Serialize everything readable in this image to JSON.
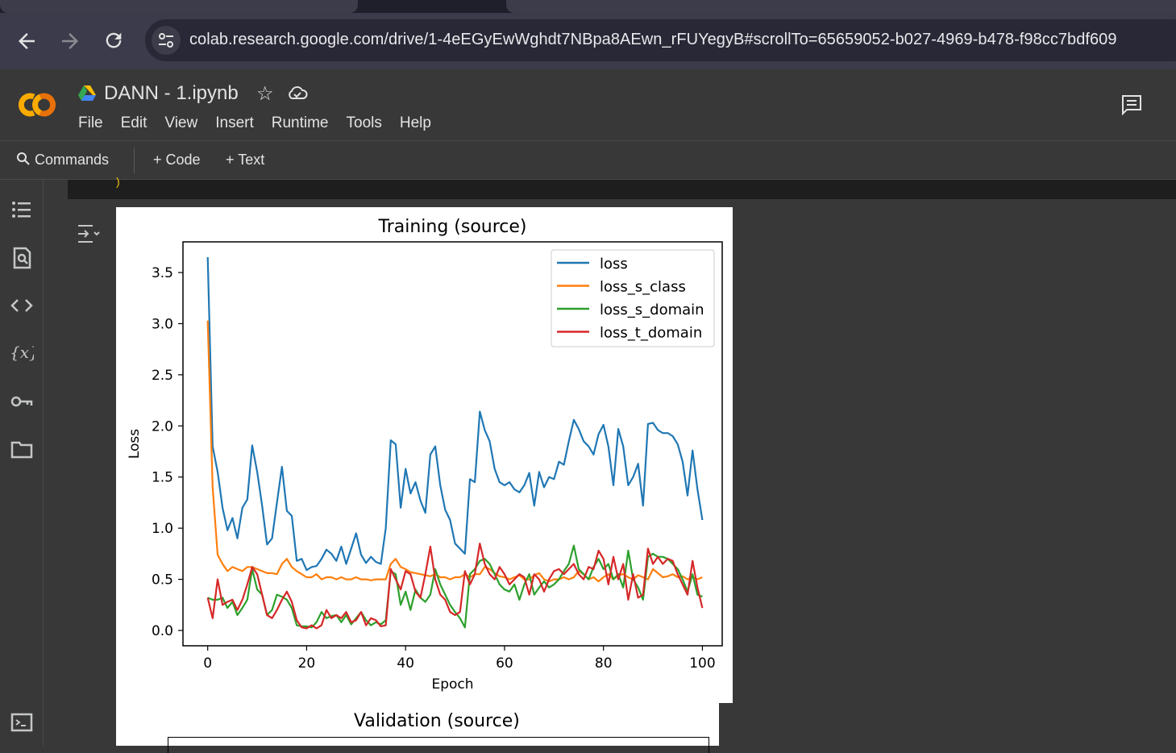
{
  "browser": {
    "url": "colab.research.google.com/drive/1-4eEGyEwWghdt7NBpa8AEwn_rFUYegyB#scrollTo=65659052-b027-4969-b478-f98cc7bdf609",
    "back_icon": "arrow-left-icon",
    "forward_icon": "arrow-right-icon",
    "reload_icon": "reload-icon"
  },
  "colab": {
    "logo_text": "CO",
    "notebook_title": "DANN - 1.ipynb",
    "menu": [
      "File",
      "Edit",
      "View",
      "Insert",
      "Runtime",
      "Tools",
      "Help"
    ],
    "commands_label": "Commands",
    "add_code_label": "+ Code",
    "add_text_label": "+ Text"
  },
  "figure2": {
    "title": "Validation (source)"
  },
  "chart_data": {
    "type": "line",
    "title": "Training (source)",
    "xlabel": "Epoch",
    "ylabel": "Loss",
    "xlim": [
      0,
      100
    ],
    "ylim": [
      -0.15,
      3.8
    ],
    "xticks": [
      0,
      20,
      40,
      60,
      80,
      100
    ],
    "yticks": [
      0.0,
      0.5,
      1.0,
      1.5,
      2.0,
      2.5,
      3.0,
      3.5
    ],
    "ytick_labels": [
      "0.0",
      "0.5",
      "1.0",
      "1.5",
      "2.0",
      "2.5",
      "3.0",
      "3.5"
    ],
    "xtick_labels": [
      "0",
      "20",
      "40",
      "60",
      "80",
      "100"
    ],
    "legend_position": "top-right",
    "grid": false,
    "series": [
      {
        "name": "loss",
        "color": "#1f77b4",
        "values": [
          3.65,
          1.8,
          1.55,
          1.2,
          0.98,
          1.1,
          0.9,
          1.2,
          1.28,
          1.81,
          1.55,
          1.22,
          0.84,
          0.9,
          1.25,
          1.6,
          1.17,
          1.12,
          0.68,
          0.7,
          0.59,
          0.62,
          0.63,
          0.7,
          0.79,
          0.75,
          0.68,
          0.82,
          0.65,
          0.8,
          0.95,
          0.74,
          0.66,
          0.72,
          0.67,
          0.65,
          1.0,
          1.86,
          1.82,
          1.2,
          1.58,
          1.34,
          1.45,
          1.27,
          1.15,
          1.72,
          1.8,
          1.42,
          1.18,
          1.08,
          0.85,
          0.8,
          0.75,
          1.48,
          1.45,
          2.14,
          1.96,
          1.85,
          1.58,
          1.45,
          1.42,
          1.45,
          1.38,
          1.35,
          1.42,
          1.54,
          1.22,
          1.55,
          1.4,
          1.5,
          1.48,
          1.65,
          1.62,
          1.85,
          2.06,
          1.97,
          1.85,
          1.8,
          1.72,
          1.92,
          2.01,
          1.8,
          1.42,
          1.97,
          1.8,
          1.42,
          1.5,
          1.63,
          1.22,
          2.02,
          2.03,
          1.96,
          1.93,
          1.93,
          1.9,
          1.82,
          1.65,
          1.32,
          1.76,
          1.38,
          1.08
        ]
      },
      {
        "name": "loss_s_class",
        "color": "#ff7f0e",
        "values": [
          3.03,
          1.4,
          0.74,
          0.65,
          0.58,
          0.62,
          0.6,
          0.58,
          0.62,
          0.62,
          0.6,
          0.58,
          0.56,
          0.56,
          0.55,
          0.65,
          0.7,
          0.62,
          0.58,
          0.55,
          0.52,
          0.52,
          0.55,
          0.5,
          0.52,
          0.52,
          0.5,
          0.52,
          0.5,
          0.5,
          0.52,
          0.5,
          0.5,
          0.49,
          0.5,
          0.5,
          0.5,
          0.65,
          0.7,
          0.62,
          0.6,
          0.57,
          0.56,
          0.55,
          0.54,
          0.53,
          0.55,
          0.52,
          0.52,
          0.5,
          0.52,
          0.52,
          0.55,
          0.52,
          0.55,
          0.55,
          0.62,
          0.6,
          0.56,
          0.53,
          0.52,
          0.5,
          0.52,
          0.54,
          0.5,
          0.5,
          0.54,
          0.56,
          0.5,
          0.48,
          0.5,
          0.5,
          0.52,
          0.5,
          0.52,
          0.58,
          0.55,
          0.5,
          0.52,
          0.48,
          0.52,
          0.55,
          0.5,
          0.54,
          0.55,
          0.52,
          0.5,
          0.54,
          0.52,
          0.5,
          0.6,
          0.56,
          0.52,
          0.53,
          0.55,
          0.52,
          0.53,
          0.5,
          0.52,
          0.5,
          0.52
        ]
      },
      {
        "name": "loss_s_domain",
        "color": "#2ca02c",
        "values": [
          0.32,
          0.3,
          0.3,
          0.32,
          0.22,
          0.28,
          0.15,
          0.22,
          0.3,
          0.6,
          0.4,
          0.35,
          0.15,
          0.2,
          0.35,
          0.33,
          0.3,
          0.22,
          0.05,
          0.04,
          0.04,
          0.03,
          0.08,
          0.18,
          0.12,
          0.14,
          0.15,
          0.08,
          0.15,
          0.06,
          0.12,
          0.18,
          0.1,
          0.05,
          0.08,
          0.06,
          0.1,
          0.58,
          0.55,
          0.25,
          0.38,
          0.2,
          0.4,
          0.32,
          0.28,
          0.35,
          0.6,
          0.45,
          0.35,
          0.25,
          0.18,
          0.12,
          0.03,
          0.55,
          0.6,
          0.68,
          0.7,
          0.65,
          0.55,
          0.45,
          0.4,
          0.38,
          0.45,
          0.3,
          0.45,
          0.55,
          0.35,
          0.42,
          0.48,
          0.42,
          0.45,
          0.5,
          0.58,
          0.65,
          0.83,
          0.6,
          0.55,
          0.5,
          0.62,
          0.7,
          0.6,
          0.65,
          0.5,
          0.55,
          0.42,
          0.78,
          0.5,
          0.42,
          0.3,
          0.72,
          0.75,
          0.72,
          0.72,
          0.7,
          0.65,
          0.6,
          0.5,
          0.38,
          0.55,
          0.35,
          0.33
        ]
      },
      {
        "name": "loss_t_domain",
        "color": "#d62728",
        "values": [
          0.32,
          0.12,
          0.5,
          0.25,
          0.28,
          0.3,
          0.2,
          0.3,
          0.45,
          0.62,
          0.55,
          0.35,
          0.15,
          0.12,
          0.2,
          0.3,
          0.38,
          0.28,
          0.1,
          0.03,
          0.02,
          0.05,
          0.02,
          0.05,
          0.2,
          0.12,
          0.15,
          0.12,
          0.18,
          0.08,
          0.1,
          0.18,
          0.05,
          0.12,
          0.1,
          0.04,
          0.05,
          0.6,
          0.5,
          0.4,
          0.58,
          0.55,
          0.38,
          0.32,
          0.55,
          0.82,
          0.5,
          0.35,
          0.3,
          0.18,
          0.15,
          0.18,
          0.58,
          0.45,
          0.55,
          0.85,
          0.65,
          0.55,
          0.5,
          0.62,
          0.55,
          0.45,
          0.5,
          0.55,
          0.52,
          0.35,
          0.55,
          0.5,
          0.38,
          0.5,
          0.58,
          0.6,
          0.55,
          0.6,
          0.65,
          0.55,
          0.5,
          0.62,
          0.6,
          0.78,
          0.7,
          0.45,
          0.72,
          0.5,
          0.65,
          0.3,
          0.55,
          0.32,
          0.35,
          0.8,
          0.65,
          0.72,
          0.65,
          0.7,
          0.68,
          0.55,
          0.45,
          0.35,
          0.68,
          0.42,
          0.22
        ]
      }
    ]
  }
}
